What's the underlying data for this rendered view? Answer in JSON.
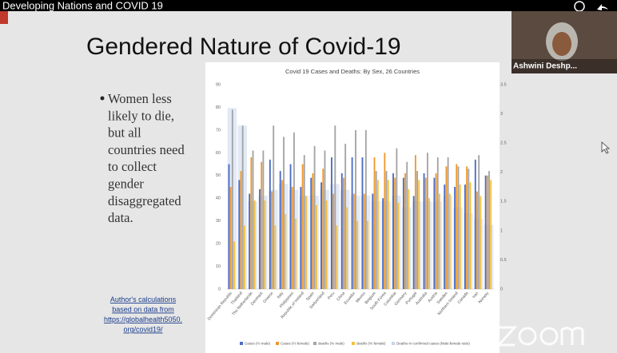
{
  "video": {
    "title": "Developing Nations and COVID 19"
  },
  "slide": {
    "title": "Gendered Nature of Covid-19",
    "bullet_lines": [
      "Women less",
      "likely to die,",
      "but all",
      "countries need",
      "to collect",
      "gender",
      "disaggregated",
      "data."
    ],
    "note_lines": [
      "Author's calculations",
      "based on data from",
      "https://globalhealth5050.",
      "org/covid19/"
    ]
  },
  "participant": {
    "name": "Ashwini Deshp..."
  },
  "chart_data": {
    "type": "bar",
    "title": "Covid 19 Cases and Deaths: By Sex, 26 Countries",
    "categories": [
      "Dominican Republic",
      "Thailand",
      "The Netherlands",
      "Denmark",
      "Greece",
      "Italy",
      "Philippines",
      "Republic of Ireland",
      "Spain",
      "Switzerland",
      "Peru",
      "China",
      "Ecuador",
      "Mexico",
      "Belgium",
      "South Korea",
      "Colombia",
      "Germany",
      "Portugal",
      "Australia",
      "Austria",
      "Sweden",
      "Northern Ireland",
      "Canada",
      "Iran",
      "Norway"
    ],
    "series": [
      {
        "name": "Cases (% male)",
        "color": "#4a6cc4",
        "values": [
          55,
          48,
          42,
          44,
          57,
          52,
          55,
          45,
          49,
          47,
          58,
          51,
          58,
          58,
          42,
          40,
          51,
          49,
          41,
          51,
          49,
          46,
          45,
          46,
          57,
          50
        ]
      },
      {
        "name": "Cases (% female)",
        "color": "#ee9a2e",
        "values": [
          45,
          52,
          58,
          56,
          43,
          48,
          45,
          55,
          51,
          53,
          42,
          49,
          42,
          42,
          58,
          60,
          49,
          51,
          59,
          49,
          51,
          54,
          55,
          54,
          43,
          50
        ]
      },
      {
        "name": "deaths (% male)",
        "color": "#a4a4a4",
        "values": [
          79,
          72,
          61,
          61,
          72,
          67,
          69,
          59,
          63,
          61,
          72,
          64,
          70,
          70,
          52,
          52,
          62,
          56,
          52,
          60,
          58,
          58,
          54,
          53,
          59,
          52
        ]
      },
      {
        "name": "deaths (% female)",
        "color": "#f3c13f",
        "values": [
          21,
          28,
          39,
          39,
          28,
          33,
          31,
          41,
          37,
          39,
          28,
          36,
          30,
          30,
          48,
          48,
          38,
          44,
          48,
          40,
          42,
          42,
          46,
          47,
          41,
          48
        ]
      },
      {
        "name": "Deaths in confirmed cases (Male:female ratio)",
        "color": "#c5d3ee",
        "axis": "y2",
        "values": [
          3.1,
          2.8,
          1.5,
          1.6,
          1.7,
          1.8,
          1.7,
          1.6,
          1.6,
          1.7,
          1.8,
          1.7,
          1.6,
          1.6,
          1.5,
          1.5,
          1.6,
          1.4,
          1.5,
          1.5,
          1.5,
          1.6,
          1.4,
          1.3,
          1.2,
          1.1
        ]
      }
    ],
    "ylim": [
      0,
      90
    ],
    "yticks": [
      0,
      10,
      20,
      30,
      40,
      50,
      60,
      70,
      80,
      90
    ],
    "y2lim": [
      0,
      3.5
    ],
    "y2ticks": [
      0,
      0.5,
      1,
      1.5,
      2,
      2.5,
      3,
      3.5
    ]
  }
}
